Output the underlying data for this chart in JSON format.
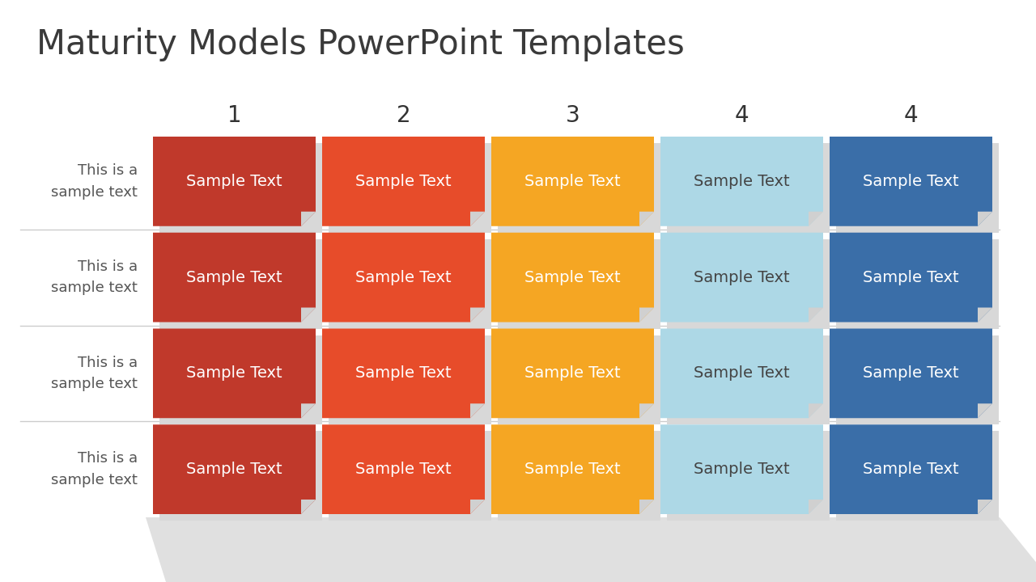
{
  "title": "Maturity Models PowerPoint Templates",
  "title_fontsize": 30,
  "title_color": "#3a3a3a",
  "background_color": "#ffffff",
  "col_labels": [
    "1",
    "2",
    "3",
    "4",
    "4"
  ],
  "row_labels": [
    "This is a\nsample text",
    "This is a\nsample text",
    "This is a\nsample text",
    "This is a\nsample text"
  ],
  "cell_text": "Sample Text",
  "col_colors": [
    "#c0392b",
    "#e74c2a",
    "#f5a623",
    "#add8e6",
    "#3a6ea8"
  ],
  "col_text_colors": [
    "#ffffff",
    "#ffffff",
    "#ffffff",
    "#444444",
    "#ffffff"
  ],
  "n_rows": 4,
  "n_cols": 5,
  "row_label_color": "#555555",
  "col_label_color": "#333333",
  "shadow_color": "#d8d8d8",
  "fold_color": "#d0d0d0",
  "separator_color": "#cccccc",
  "grid_shadow_color": "#e0e0e0"
}
